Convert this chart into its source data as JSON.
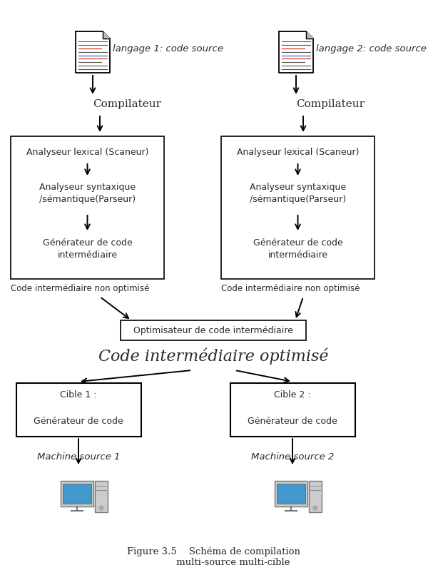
{
  "title": "Figure 3.5    Schéma de compilation\n             multi-source multi-cible",
  "bg_color": "#ffffff",
  "box_color": "#ffffff",
  "box_edge": "#000000",
  "text_color": "#2a2a2a",
  "arrow_color": "#000000",
  "lang1_label": "langage 1: code source",
  "lang2_label": "langage 2: code source",
  "compilateur": "Compilateur",
  "analyseur_lexical": "Analyseur lexical (Scaneur)",
  "analyseur_syntaxique": "Analyseur syntaxique\n/sémantique(Parseur)",
  "generateur_intermediaire": "Générateur de code\nintermédiaire",
  "code_intermediaire_non": "Code intermédiaire non optimisé",
  "optimisateur": "Optimisateur de code intermédiaire",
  "code_intermediaire_opt": "Code intermédiaire optimisé",
  "cible1_line1": "Cible 1 :",
  "cible1_line2": "Générateur de code",
  "cible2_line1": "Cible 2 :",
  "cible2_line2": "Générateur de code",
  "machine1": "Machine source 1",
  "machine2": "Machine source 2",
  "lc": 130,
  "rc": 415,
  "fig_w": 578,
  "fig_h": 793
}
